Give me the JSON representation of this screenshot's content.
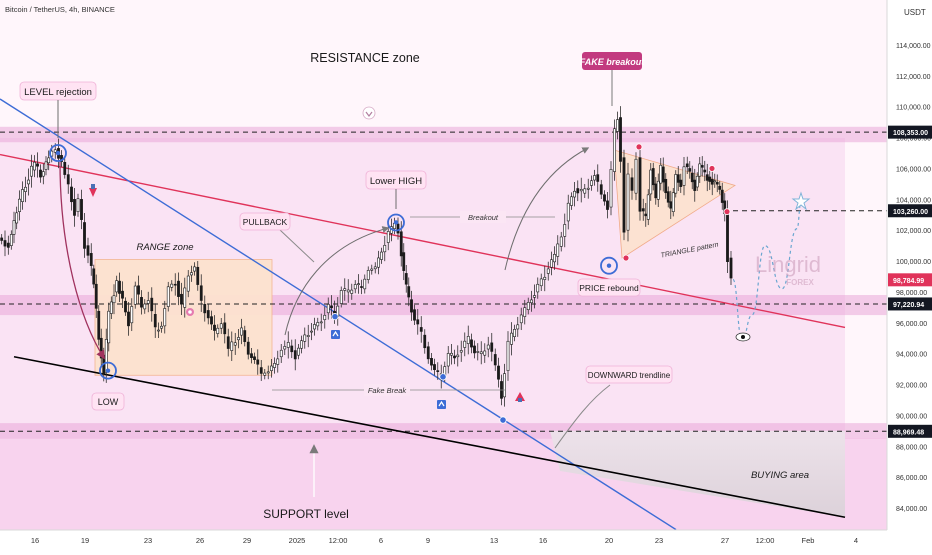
{
  "header": {
    "symbol_label": "Bitcoin / TetherUS, 4h, BINANCE"
  },
  "currency": "USDT",
  "watermark": {
    "brand": "Lingrid",
    "sub": "FOREX"
  },
  "colors": {
    "bg": "#fff7fc",
    "zone_pink": "#f8d2ee",
    "range_orange": "#fde2cf",
    "buy_grey": "#ddd6db",
    "trend_red": "#e0335a",
    "trend_blue": "#3d6cd6",
    "label_bg": "#ffe3f3",
    "fake_label_bg": "#c23a7f"
  },
  "annotations": {
    "resistance_zone": "RESISTANCE zone",
    "fake_breakout": "FAKE breakout",
    "level_rejection": "LEVEL rejection",
    "range_zone": "RANGE zone",
    "pullback": "PULLBACK",
    "lower_high": "Lower HIGH",
    "breakout": "Breakout",
    "triangle_pattern": "TRIANGLE pattern",
    "price_rebound": "PRICE rebound",
    "low": "LOW",
    "fake_break": "Fake Break",
    "downward_trendline": "DOWNWARD trendline",
    "buying_area": "BUYING area",
    "support_level": "SUPPORT level"
  },
  "chart_data": {
    "type": "candlestick",
    "symbol": "Bitcoin / TetherUS",
    "timeframe": "4h",
    "exchange": "BINANCE",
    "y_axis": {
      "unit": "USDT",
      "range": [
        82500,
        116500
      ],
      "ticks": [
        84000,
        86000,
        88000,
        90000,
        92000,
        94000,
        96000,
        98000,
        100000,
        102000,
        104000,
        106000,
        108000,
        110000,
        112000,
        114000
      ],
      "tick_labels": [
        "84,000.00",
        "86,000.00",
        "88,000.00",
        "90,000.00",
        "92,000.00",
        "94,000.00",
        "96,000.00",
        "98,000.00",
        "100,000.00",
        "102,000.00",
        "104,000.00",
        "106,000.00",
        "108,000.00",
        "110,000.00",
        "112,000.00",
        "114,000.00"
      ]
    },
    "x_axis": {
      "range": [
        0,
        855
      ],
      "ticks": [
        {
          "x": 35,
          "label": "16"
        },
        {
          "x": 85,
          "label": "19"
        },
        {
          "x": 148,
          "label": "23"
        },
        {
          "x": 200,
          "label": "26"
        },
        {
          "x": 247,
          "label": "29"
        },
        {
          "x": 297,
          "label": "2025"
        },
        {
          "x": 338,
          "label": "12:00"
        },
        {
          "x": 381,
          "label": "6"
        },
        {
          "x": 428,
          "label": "9"
        },
        {
          "x": 494,
          "label": "13"
        },
        {
          "x": 543,
          "label": "16"
        },
        {
          "x": 609,
          "label": "20"
        },
        {
          "x": 659,
          "label": "23"
        },
        {
          "x": 725,
          "label": "27"
        },
        {
          "x": 765,
          "label": "12:00"
        },
        {
          "x": 808,
          "label": "Feb"
        },
        {
          "x": 856,
          "label": "4"
        }
      ]
    },
    "price_markers": [
      {
        "value": 108353.0,
        "label": "108,353.00",
        "style": "dark"
      },
      {
        "value": 103260.0,
        "label": "103,260.00",
        "style": "dark"
      },
      {
        "value": 98784.99,
        "label": "98,784.99",
        "style": "red"
      },
      {
        "value": 97220.94,
        "label": "97,220.94",
        "style": "dark"
      },
      {
        "value": 88969.48,
        "label": "88,969.48",
        "style": "dark"
      }
    ],
    "zones": [
      {
        "name": "resistance",
        "low": 107700,
        "high": 108700
      },
      {
        "name": "mid_support",
        "low": 96500,
        "high": 97800
      },
      {
        "name": "support",
        "low": 88500,
        "high": 89500
      },
      {
        "name": "range",
        "x0": 95,
        "x1": 272,
        "low": 92600,
        "high": 100100
      }
    ],
    "path_points": [
      [
        0,
        101500
      ],
      [
        10,
        101000
      ],
      [
        18,
        103200
      ],
      [
        24,
        104500
      ],
      [
        30,
        105500
      ],
      [
        36,
        106300
      ],
      [
        42,
        105500
      ],
      [
        50,
        106800
      ],
      [
        57,
        107300
      ],
      [
        63,
        106400
      ],
      [
        70,
        104800
      ],
      [
        76,
        103200
      ],
      [
        80,
        104000
      ],
      [
        86,
        101000
      ],
      [
        90,
        100500
      ],
      [
        95,
        98500
      ],
      [
        100,
        95000
      ],
      [
        105,
        92800
      ],
      [
        110,
        96600
      ],
      [
        118,
        98700
      ],
      [
        124,
        97400
      ],
      [
        130,
        96000
      ],
      [
        137,
        98400
      ],
      [
        143,
        96900
      ],
      [
        150,
        97600
      ],
      [
        157,
        95500
      ],
      [
        163,
        95800
      ],
      [
        170,
        98300
      ],
      [
        177,
        98700
      ],
      [
        183,
        97000
      ],
      [
        190,
        99100
      ],
      [
        196,
        99600
      ],
      [
        203,
        97200
      ],
      [
        210,
        96400
      ],
      [
        216,
        95300
      ],
      [
        223,
        96000
      ],
      [
        230,
        94200
      ],
      [
        237,
        94900
      ],
      [
        243,
        95500
      ],
      [
        250,
        94000
      ],
      [
        256,
        93600
      ],
      [
        263,
        92600
      ],
      [
        270,
        92900
      ],
      [
        276,
        93300
      ],
      [
        283,
        94300
      ],
      [
        290,
        94500
      ],
      [
        297,
        93900
      ],
      [
        303,
        94800
      ],
      [
        310,
        95400
      ],
      [
        316,
        95800
      ],
      [
        323,
        96200
      ],
      [
        330,
        97100
      ],
      [
        336,
        96400
      ],
      [
        343,
        98100
      ],
      [
        350,
        97900
      ],
      [
        357,
        98500
      ],
      [
        363,
        98200
      ],
      [
        370,
        99400
      ],
      [
        377,
        99600
      ],
      [
        383,
        100600
      ],
      [
        390,
        101800
      ],
      [
        396,
        102400
      ],
      [
        400,
        101900
      ],
      [
        405,
        99200
      ],
      [
        410,
        97500
      ],
      [
        416,
        96200
      ],
      [
        423,
        95200
      ],
      [
        430,
        93700
      ],
      [
        436,
        92900
      ],
      [
        443,
        92500
      ],
      [
        450,
        93900
      ],
      [
        456,
        93800
      ],
      [
        463,
        94400
      ],
      [
        470,
        94900
      ],
      [
        476,
        94100
      ],
      [
        483,
        93900
      ],
      [
        490,
        94700
      ],
      [
        497,
        93200
      ],
      [
        503,
        91200
      ],
      [
        506,
        92900
      ],
      [
        510,
        94600
      ],
      [
        516,
        95600
      ],
      [
        523,
        96400
      ],
      [
        530,
        97300
      ],
      [
        536,
        98000
      ],
      [
        543,
        98800
      ],
      [
        550,
        99600
      ],
      [
        556,
        100300
      ],
      [
        563,
        101600
      ],
      [
        570,
        103600
      ],
      [
        576,
        104700
      ],
      [
        583,
        104400
      ],
      [
        590,
        104900
      ],
      [
        596,
        105600
      ],
      [
        603,
        104300
      ],
      [
        609,
        103500
      ],
      [
        613,
        105800
      ],
      [
        616,
        108400
      ],
      [
        619,
        109300
      ],
      [
        622,
        106700
      ],
      [
        626,
        102000
      ],
      [
        630,
        105400
      ],
      [
        634,
        104400
      ],
      [
        638,
        106700
      ],
      [
        642,
        103400
      ],
      [
        647,
        102700
      ],
      [
        652,
        106000
      ],
      [
        657,
        104000
      ],
      [
        662,
        106100
      ],
      [
        667,
        104500
      ],
      [
        672,
        103200
      ],
      [
        677,
        105600
      ],
      [
        682,
        104900
      ],
      [
        686,
        106300
      ],
      [
        691,
        105700
      ],
      [
        696,
        104800
      ],
      [
        701,
        106200
      ],
      [
        706,
        105600
      ],
      [
        711,
        105300
      ],
      [
        716,
        105100
      ],
      [
        721,
        104600
      ],
      [
        726,
        103200
      ],
      [
        729,
        100200
      ],
      [
        733,
        98800
      ]
    ],
    "projection_points": [
      [
        733,
        98800
      ],
      [
        742,
        94900
      ],
      [
        752,
        96500
      ],
      [
        765,
        101000
      ],
      [
        782,
        98200
      ],
      [
        797,
        102100
      ],
      [
        801,
        103800
      ]
    ],
    "trendlines": [
      {
        "name": "red_descending",
        "from": [
          0,
          106900
        ],
        "to": [
          845,
          95700
        ]
      },
      {
        "name": "blue_descending",
        "from": [
          0,
          110500
        ],
        "to": [
          676,
          82600
        ]
      },
      {
        "name": "black_support",
        "from": [
          14,
          93800
        ],
        "to": [
          845,
          83400
        ]
      }
    ],
    "triangle": {
      "points": [
        [
          614,
          107200
        ],
        [
          735,
          104900
        ],
        [
          622,
          100200
        ]
      ]
    },
    "dashed_levels": [
      108353.0,
      103260.0,
      97220.94,
      88969.48
    ],
    "markers": [
      {
        "name": "level-rejection",
        "x": 58,
        "y": 107000
      },
      {
        "name": "low",
        "x": 108,
        "y": 92900
      },
      {
        "name": "lower-high",
        "x": 396,
        "y": 102500
      },
      {
        "name": "price-rebound",
        "x": 609,
        "y": 99700
      },
      {
        "name": "dot-fake-break",
        "x": 443,
        "y": 92500
      },
      {
        "name": "dot-blue-1",
        "x": 335,
        "y": 96400
      },
      {
        "name": "dot-trend-low",
        "x": 503,
        "y": 89700
      },
      {
        "name": "dot-red-1",
        "x": 626,
        "y": 100200
      },
      {
        "name": "dot-red-2",
        "x": 639,
        "y": 107400
      },
      {
        "name": "dot-red-3",
        "x": 712,
        "y": 106000
      },
      {
        "name": "dot-red-4",
        "x": 727,
        "y": 103200
      }
    ]
  }
}
